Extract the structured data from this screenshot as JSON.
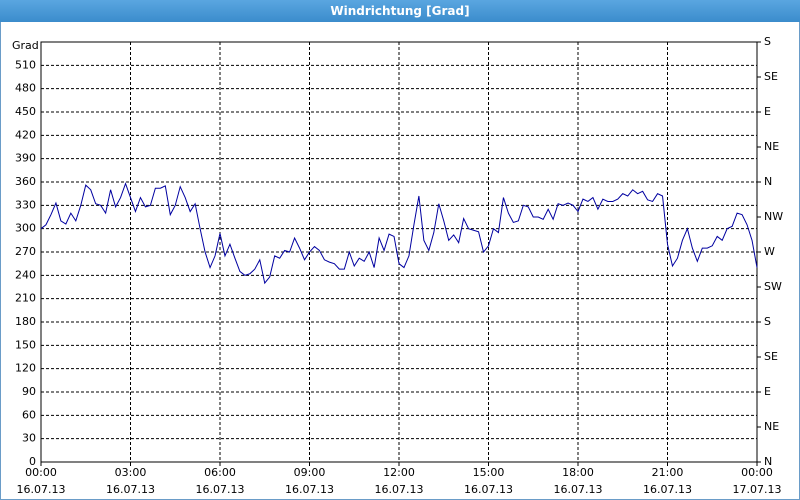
{
  "chart_data": {
    "type": "line",
    "title": "Windrichtung [Grad]",
    "y_label": "Grad",
    "color": "#0000a0",
    "grid": true,
    "xlim": [
      0,
      1440
    ],
    "ylim": [
      0,
      540
    ],
    "y2lim": [
      0,
      540
    ],
    "xticks": [
      {
        "value": 0,
        "label": "00:00\n16.07.13"
      },
      {
        "value": 180,
        "label": "03:00\n16.07.13"
      },
      {
        "value": 360,
        "label": "06:00\n16.07.13"
      },
      {
        "value": 540,
        "label": "09:00\n16.07.13"
      },
      {
        "value": 720,
        "label": "12:00\n16.07.13"
      },
      {
        "value": 900,
        "label": "15:00\n16.07.13"
      },
      {
        "value": 1080,
        "label": "18:00\n16.07.13"
      },
      {
        "value": 1260,
        "label": "21:00\n16.07.13"
      },
      {
        "value": 1440,
        "label": "00:00\n17.07.13"
      }
    ],
    "yticks": [
      0,
      30,
      60,
      90,
      120,
      150,
      180,
      210,
      240,
      270,
      300,
      330,
      360,
      390,
      420,
      450,
      480,
      510
    ],
    "y2ticks": [
      {
        "value": 0,
        "label": "N"
      },
      {
        "value": 45,
        "label": "NE"
      },
      {
        "value": 90,
        "label": "E"
      },
      {
        "value": 135,
        "label": "SE"
      },
      {
        "value": 180,
        "label": "S"
      },
      {
        "value": 225,
        "label": "SW"
      },
      {
        "value": 270,
        "label": "W"
      },
      {
        "value": 315,
        "label": "NW"
      },
      {
        "value": 360,
        "label": "N"
      },
      {
        "value": 405,
        "label": "NE"
      },
      {
        "value": 450,
        "label": "E"
      },
      {
        "value": 495,
        "label": "SE"
      },
      {
        "value": 540,
        "label": "S"
      }
    ],
    "x": [
      0,
      10,
      20,
      30,
      40,
      50,
      60,
      70,
      80,
      90,
      100,
      110,
      120,
      130,
      140,
      150,
      160,
      170,
      180,
      190,
      200,
      210,
      220,
      230,
      240,
      250,
      260,
      270,
      280,
      290,
      300,
      310,
      320,
      330,
      340,
      350,
      360,
      370,
      380,
      390,
      400,
      410,
      420,
      430,
      440,
      450,
      460,
      470,
      480,
      490,
      500,
      510,
      520,
      530,
      540,
      550,
      560,
      570,
      580,
      590,
      600,
      610,
      620,
      630,
      640,
      650,
      660,
      670,
      680,
      690,
      700,
      710,
      720,
      730,
      740,
      750,
      760,
      770,
      780,
      790,
      800,
      810,
      820,
      830,
      840,
      850,
      860,
      870,
      880,
      890,
      900,
      910,
      920,
      930,
      940,
      950,
      960,
      970,
      980,
      990,
      1000,
      1010,
      1020,
      1030,
      1040,
      1050,
      1060,
      1070,
      1080,
      1090,
      1100,
      1110,
      1120,
      1130,
      1140,
      1150,
      1160,
      1170,
      1180,
      1190,
      1200,
      1210,
      1220,
      1230,
      1240,
      1250,
      1260,
      1270,
      1280,
      1290,
      1300,
      1310,
      1320,
      1330,
      1340,
      1350,
      1360,
      1370,
      1380,
      1390,
      1400,
      1410,
      1420,
      1430,
      1440
    ],
    "values": [
      300,
      305,
      318,
      333,
      310,
      306,
      320,
      310,
      330,
      356,
      350,
      332,
      330,
      320,
      350,
      328,
      340,
      358,
      340,
      322,
      340,
      328,
      330,
      352,
      352,
      355,
      318,
      330,
      354,
      340,
      322,
      332,
      300,
      270,
      250,
      265,
      294,
      265,
      280,
      262,
      245,
      240,
      242,
      248,
      260,
      230,
      238,
      265,
      262,
      272,
      270,
      288,
      275,
      260,
      270,
      277,
      272,
      260,
      257,
      255,
      248,
      248,
      270,
      252,
      262,
      258,
      270,
      250,
      288,
      272,
      293,
      290,
      255,
      250,
      265,
      305,
      342,
      285,
      272,
      295,
      332,
      310,
      285,
      292,
      282,
      313,
      300,
      298,
      296,
      270,
      278,
      300,
      295,
      340,
      320,
      308,
      310,
      330,
      328,
      315,
      315,
      312,
      325,
      312,
      332,
      330,
      333,
      330,
      322,
      338,
      335,
      340,
      325,
      338,
      335,
      335,
      338,
      345,
      342,
      350,
      345,
      348,
      337,
      335,
      345,
      342,
      280,
      252,
      262,
      285,
      300,
      275,
      258,
      275,
      275,
      278,
      290,
      285,
      300,
      303,
      320,
      318,
      305,
      285,
      250
    ]
  }
}
